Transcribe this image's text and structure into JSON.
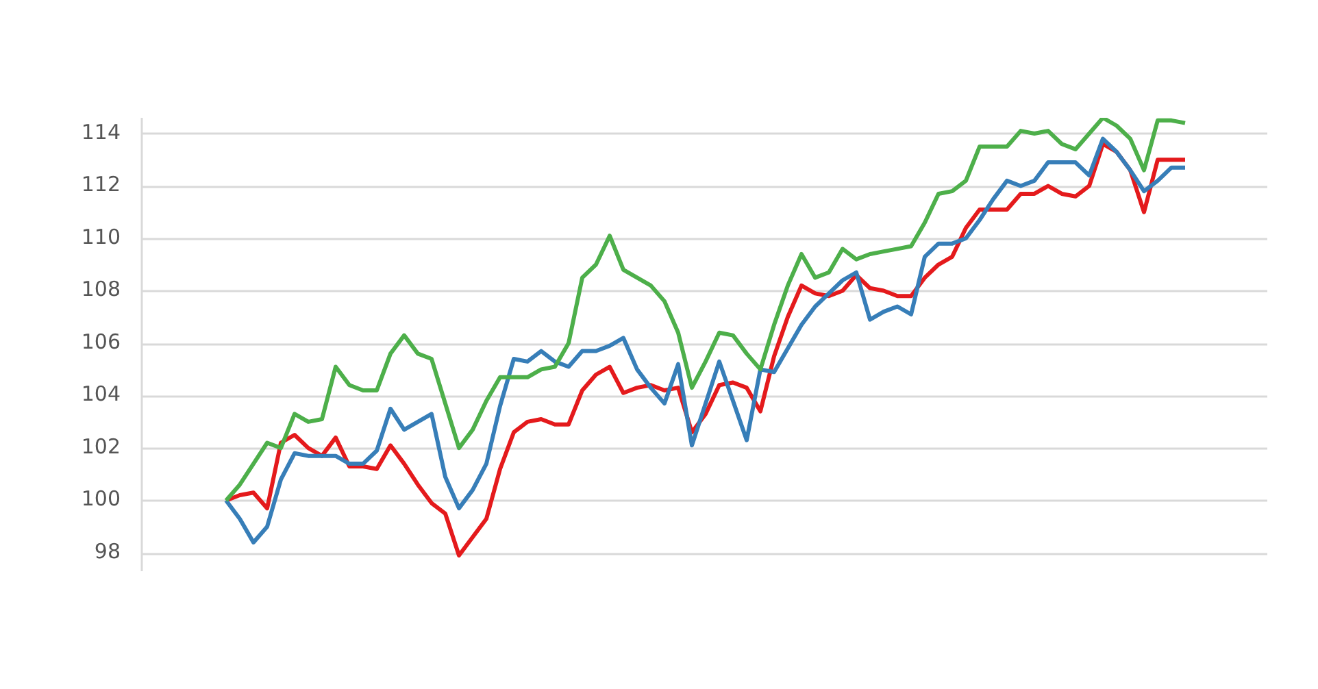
{
  "chart_data": {
    "type": "line",
    "categories": [
      null,
      null,
      null,
      null,
      null,
      null,
      null,
      null,
      null,
      null,
      null,
      null,
      null,
      null,
      null,
      null,
      null,
      null,
      null,
      null,
      null,
      null,
      null,
      null,
      null,
      null,
      null,
      null,
      null,
      null,
      null,
      null,
      null,
      null,
      null,
      null,
      null,
      null,
      null,
      null,
      null,
      null,
      null,
      null,
      null,
      null,
      null,
      null,
      null,
      null,
      null,
      null,
      null,
      null,
      null,
      null,
      null,
      null,
      null,
      null,
      null,
      null,
      null,
      null,
      null,
      null,
      null,
      null,
      null,
      null,
      null
    ],
    "series": [
      {
        "color": "#4daf4a",
        "values": [
          100,
          100.6,
          101.4,
          102.2,
          102.0,
          103.3,
          103.0,
          103.1,
          105.1,
          104.4,
          104.2,
          104.2,
          105.6,
          106.3,
          105.6,
          105.4,
          103.7,
          102.0,
          102.7,
          103.8,
          104.7,
          104.7,
          104.7,
          105.0,
          105.1,
          106.0,
          108.5,
          109.0,
          110.1,
          108.8,
          108.5,
          108.2,
          107.6,
          106.4,
          104.3,
          105.3,
          106.4,
          106.3,
          105.6,
          105.0,
          106.7,
          108.2,
          109.4,
          108.5,
          108.7,
          109.6,
          109.2,
          109.4,
          109.5,
          109.6,
          109.7,
          110.6,
          111.7,
          111.8,
          112.2,
          113.5,
          113.5,
          113.5,
          114.1,
          114.0,
          114.1,
          113.6,
          113.4,
          114.0,
          114.6,
          114.3,
          113.8,
          112.6,
          114.5,
          114.5,
          114.4
        ]
      },
      {
        "color": "#377eb8",
        "values": [
          100,
          99.3,
          98.4,
          99.0,
          100.8,
          101.8,
          101.7,
          101.7,
          101.7,
          101.4,
          101.4,
          101.9,
          103.5,
          102.7,
          103.0,
          103.3,
          100.9,
          99.7,
          100.4,
          101.4,
          103.6,
          105.4,
          105.3,
          105.7,
          105.3,
          105.1,
          105.7,
          105.7,
          105.9,
          106.2,
          105.0,
          104.3,
          103.7,
          105.2,
          102.1,
          103.7,
          105.3,
          103.8,
          102.3,
          105.0,
          104.9,
          105.8,
          106.7,
          107.4,
          107.9,
          108.4,
          108.7,
          106.9,
          107.2,
          107.4,
          107.1,
          109.3,
          109.8,
          109.8,
          110.0,
          110.7,
          111.5,
          112.2,
          112.0,
          112.2,
          112.9,
          112.9,
          112.9,
          112.4,
          113.8,
          113.3,
          112.6,
          111.8,
          112.2,
          112.7,
          112.7
        ]
      },
      {
        "color": "#e41a1c",
        "values": [
          100,
          100.2,
          100.3,
          99.7,
          102.2,
          102.5,
          102.0,
          101.7,
          102.4,
          101.3,
          101.3,
          101.2,
          102.1,
          101.4,
          100.6,
          99.9,
          99.5,
          97.9,
          98.6,
          99.3,
          101.2,
          102.6,
          103.0,
          103.1,
          102.9,
          102.9,
          104.2,
          104.8,
          105.1,
          104.1,
          104.3,
          104.4,
          104.2,
          104.3,
          102.6,
          103.3,
          104.4,
          104.5,
          104.3,
          103.4,
          105.5,
          107.0,
          108.2,
          107.9,
          107.8,
          108.0,
          108.6,
          108.1,
          108.0,
          107.8,
          107.8,
          108.5,
          109.0,
          109.3,
          110.4,
          111.1,
          111.1,
          111.1,
          111.7,
          111.7,
          112.0,
          111.7,
          111.6,
          112.0,
          113.6,
          113.3,
          112.6,
          111.0,
          113.0,
          113.0,
          113.0
        ]
      }
    ],
    "ylim": [
      97.3,
      114.6
    ],
    "yticks": [
      98,
      100,
      102,
      104,
      106,
      108,
      110,
      112,
      114
    ],
    "grid": "y",
    "tick_labels": "y",
    "marker": "none",
    "line_style": "solid"
  }
}
